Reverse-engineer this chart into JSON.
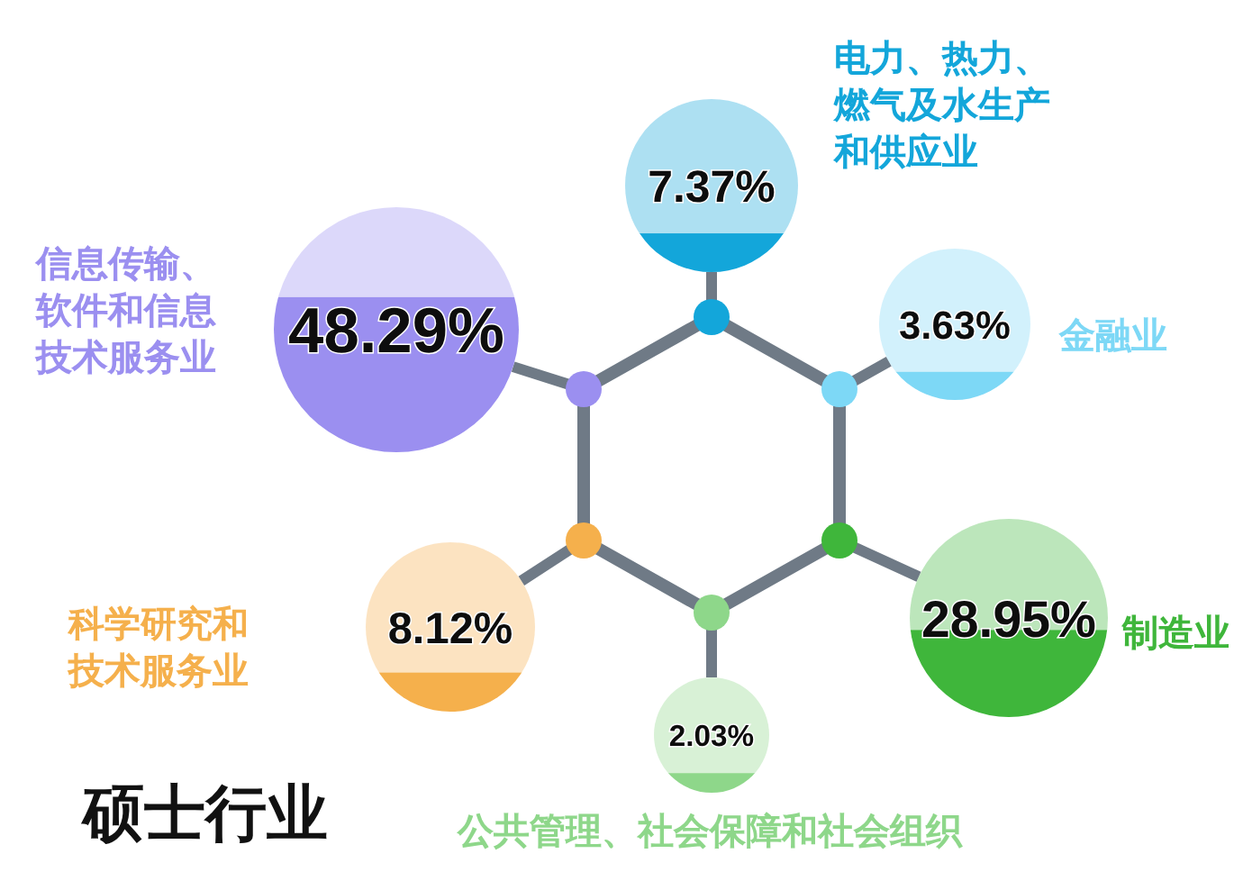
{
  "chart_data": {
    "type": "other",
    "title": "硕士行业",
    "categories": [
      "电力、热力、燃气及水生产和供应业",
      "金融业",
      "制造业",
      "公共管理、社会保障和社会组织",
      "科学研究和技术服务业",
      "信息传输、软件和信息技术服务业"
    ],
    "values": [
      7.37,
      3.63,
      28.95,
      2.03,
      8.12,
      48.29
    ],
    "value_labels": [
      "7.37%",
      "3.63%",
      "28.95%",
      "2.03%",
      "8.12%",
      "48.29%"
    ],
    "colors": [
      "#13a6da",
      "#7dd8f6",
      "#3fb63b",
      "#8ed78a",
      "#f5b04c",
      "#9b8ff0"
    ]
  }
}
